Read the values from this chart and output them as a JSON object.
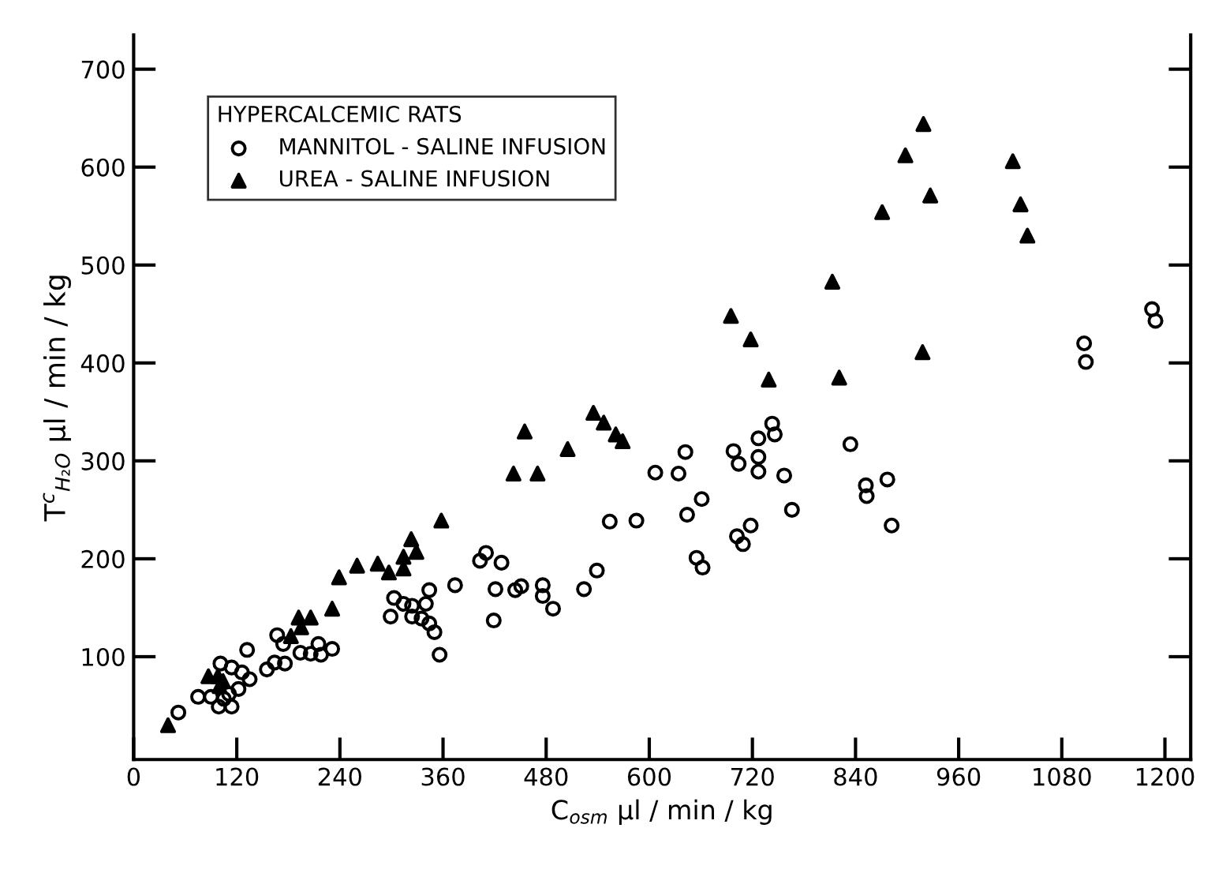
{
  "chart_data": {
    "type": "scatter",
    "xlabel": "C$_{osm}$ μl / min / kg",
    "ylabel": "T$^{c}$$_{H₂O}$ μl / min / kg",
    "legend_title": "HYPERCALCEMIC RATS",
    "legend": "top left",
    "grid": false,
    "xlim": [
      0,
      1230
    ],
    "ylim": [
      -5,
      735
    ],
    "xticks": [
      0,
      120,
      240,
      360,
      480,
      600,
      720,
      840,
      960,
      1080,
      1200
    ],
    "yticks": [
      100,
      200,
      300,
      400,
      500,
      600,
      700
    ],
    "series": [
      {
        "name": "MANNITOL - SALINE INFUSION",
        "color": "#000000",
        "marker": "circle",
        "x": [
          52,
          75,
          90,
          99,
          114,
          101,
          111,
          122,
          114,
          126,
          135,
          132,
          105,
          155,
          164,
          176,
          167,
          174,
          194,
          206,
          218,
          215,
          231,
          299,
          303,
          314,
          324,
          324,
          335,
          340,
          344,
          350,
          344,
          356,
          374,
          403,
          410,
          428,
          421,
          419,
          444,
          451,
          476,
          476,
          488,
          524,
          539,
          554,
          585,
          607,
          634,
          642,
          661,
          644,
          655,
          662,
          698,
          704,
          727,
          727,
          727,
          743,
          746,
          757,
          766,
          718,
          702,
          709,
          834,
          852,
          853,
          877,
          882,
          1106,
          1108,
          1185,
          1189
        ],
        "values": [
          43,
          59,
          59,
          49,
          49,
          93,
          62,
          67,
          89,
          84,
          77,
          107,
          57,
          87,
          94,
          93,
          122,
          113,
          104,
          103,
          102,
          113,
          108,
          141,
          160,
          154,
          152,
          141,
          139,
          154,
          134,
          125,
          168,
          102,
          173,
          198,
          206,
          196,
          169,
          137,
          168,
          172,
          173,
          162,
          149,
          169,
          188,
          238,
          239,
          288,
          287,
          309,
          261,
          245,
          201,
          191,
          310,
          297,
          323,
          304,
          289,
          338,
          327,
          285,
          250,
          234,
          223,
          215,
          317,
          275,
          264,
          281,
          234,
          420,
          401,
          455,
          443
        ]
      },
      {
        "name": "UREA - SALINE INFUSION",
        "color": "#000000",
        "marker": "triangle",
        "x": [
          40,
          87,
          98,
          104,
          100,
          183,
          192,
          195,
          206,
          231,
          239,
          260,
          284,
          297,
          314,
          314,
          323,
          329,
          358,
          442,
          455,
          470,
          505,
          535,
          547,
          561,
          569,
          695,
          718,
          739,
          813,
          821,
          871,
          898,
          918,
          919,
          927,
          1023,
          1032,
          1040
        ],
        "values": [
          30,
          80,
          80,
          75,
          70,
          121,
          140,
          130,
          140,
          149,
          181,
          193,
          195,
          186,
          190,
          202,
          220,
          207,
          239,
          287,
          330,
          287,
          312,
          349,
          339,
          327,
          320,
          448,
          424,
          383,
          483,
          385,
          554,
          612,
          411,
          644,
          571,
          606,
          562,
          530
        ]
      }
    ]
  }
}
